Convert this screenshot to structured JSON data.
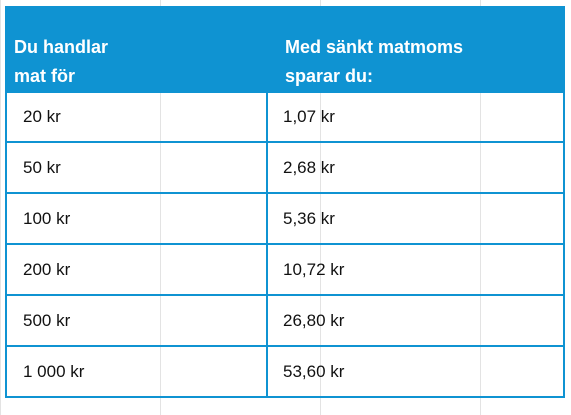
{
  "table": {
    "headers": [
      "Du handlar\nmat för",
      "Med sänkt matmoms\nsparar du:"
    ],
    "rows": [
      [
        "20 kr",
        "1,07 kr"
      ],
      [
        "50 kr",
        "2,68 kr"
      ],
      [
        "100 kr",
        "5,36 kr"
      ],
      [
        "200 kr",
        "10,72 kr"
      ],
      [
        "500 kr",
        "26,80 kr"
      ],
      [
        "1 000 kr",
        "53,60 kr"
      ]
    ]
  },
  "colors": {
    "header_background": "#0f93d2",
    "header_text": "#ffffff",
    "border": "#0f93d2",
    "cell_text": "#111111"
  }
}
